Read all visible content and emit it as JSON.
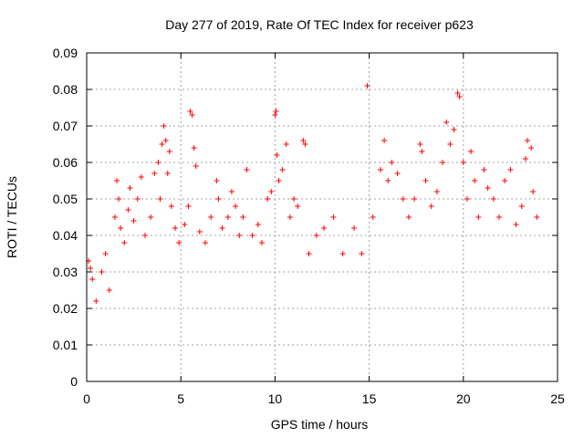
{
  "chart_data": {
    "type": "scatter",
    "title": "Day 277 of 2019, Rate Of TEC Index for receiver p623",
    "xlabel": "GPS time / hours",
    "ylabel": "ROTI / TECUs",
    "xlim": [
      0,
      25
    ],
    "ylim": [
      0,
      0.09
    ],
    "xticks": [
      0,
      5,
      10,
      15,
      20,
      25
    ],
    "xtick_labels": [
      "0",
      "5",
      "10",
      "15",
      "20",
      "25"
    ],
    "yticks": [
      0,
      0.01,
      0.02,
      0.03,
      0.04,
      0.05,
      0.06,
      0.07,
      0.08,
      0.09
    ],
    "ytick_labels": [
      "0",
      "0.01",
      "0.02",
      "0.03",
      "0.04",
      "0.05",
      "0.06",
      "0.07",
      "0.08",
      "0.09"
    ],
    "grid": true,
    "marker": "+",
    "color": "#ff0000",
    "series": [
      {
        "points": [
          [
            0.1,
            0.033
          ],
          [
            0.2,
            0.031
          ],
          [
            0.3,
            0.028
          ],
          [
            0.5,
            0.022
          ],
          [
            0.8,
            0.03
          ],
          [
            1.0,
            0.035
          ],
          [
            1.2,
            0.025
          ],
          [
            1.5,
            0.045
          ],
          [
            1.6,
            0.055
          ],
          [
            1.7,
            0.05
          ],
          [
            1.8,
            0.042
          ],
          [
            2.0,
            0.038
          ],
          [
            2.2,
            0.047
          ],
          [
            2.3,
            0.053
          ],
          [
            2.5,
            0.044
          ],
          [
            2.7,
            0.05
          ],
          [
            2.9,
            0.056
          ],
          [
            3.1,
            0.04
          ],
          [
            3.4,
            0.045
          ],
          [
            3.6,
            0.057
          ],
          [
            3.8,
            0.06
          ],
          [
            3.9,
            0.05
          ],
          [
            4.0,
            0.065
          ],
          [
            4.1,
            0.07
          ],
          [
            4.2,
            0.066
          ],
          [
            4.3,
            0.057
          ],
          [
            4.4,
            0.063
          ],
          [
            4.5,
            0.048
          ],
          [
            4.7,
            0.042
          ],
          [
            4.9,
            0.038
          ],
          [
            5.2,
            0.043
          ],
          [
            5.4,
            0.048
          ],
          [
            5.5,
            0.074
          ],
          [
            5.6,
            0.073
          ],
          [
            5.7,
            0.064
          ],
          [
            5.8,
            0.059
          ],
          [
            6.0,
            0.041
          ],
          [
            6.3,
            0.038
          ],
          [
            6.6,
            0.045
          ],
          [
            6.9,
            0.055
          ],
          [
            7.0,
            0.05
          ],
          [
            7.2,
            0.042
          ],
          [
            7.5,
            0.045
          ],
          [
            7.7,
            0.052
          ],
          [
            7.9,
            0.048
          ],
          [
            8.1,
            0.04
          ],
          [
            8.3,
            0.045
          ],
          [
            8.5,
            0.058
          ],
          [
            8.8,
            0.04
          ],
          [
            9.1,
            0.043
          ],
          [
            9.3,
            0.038
          ],
          [
            9.6,
            0.05
          ],
          [
            9.8,
            0.052
          ],
          [
            10.0,
            0.073
          ],
          [
            10.05,
            0.074
          ],
          [
            10.1,
            0.062
          ],
          [
            10.2,
            0.055
          ],
          [
            10.4,
            0.058
          ],
          [
            10.6,
            0.065
          ],
          [
            10.8,
            0.045
          ],
          [
            11.0,
            0.05
          ],
          [
            11.2,
            0.048
          ],
          [
            11.5,
            0.066
          ],
          [
            11.6,
            0.065
          ],
          [
            11.8,
            0.035
          ],
          [
            12.2,
            0.04
          ],
          [
            12.6,
            0.042
          ],
          [
            13.1,
            0.045
          ],
          [
            13.6,
            0.035
          ],
          [
            14.2,
            0.042
          ],
          [
            14.6,
            0.035
          ],
          [
            14.9,
            0.081
          ],
          [
            15.2,
            0.045
          ],
          [
            15.6,
            0.058
          ],
          [
            15.8,
            0.066
          ],
          [
            16.0,
            0.055
          ],
          [
            16.2,
            0.06
          ],
          [
            16.5,
            0.057
          ],
          [
            16.8,
            0.05
          ],
          [
            17.1,
            0.045
          ],
          [
            17.4,
            0.05
          ],
          [
            17.7,
            0.065
          ],
          [
            17.8,
            0.063
          ],
          [
            18.0,
            0.055
          ],
          [
            18.3,
            0.048
          ],
          [
            18.6,
            0.052
          ],
          [
            18.9,
            0.06
          ],
          [
            19.1,
            0.071
          ],
          [
            19.3,
            0.065
          ],
          [
            19.5,
            0.069
          ],
          [
            19.7,
            0.079
          ],
          [
            19.8,
            0.078
          ],
          [
            20.0,
            0.06
          ],
          [
            20.2,
            0.05
          ],
          [
            20.4,
            0.063
          ],
          [
            20.6,
            0.055
          ],
          [
            20.8,
            0.045
          ],
          [
            21.1,
            0.058
          ],
          [
            21.3,
            0.053
          ],
          [
            21.6,
            0.05
          ],
          [
            21.9,
            0.045
          ],
          [
            22.2,
            0.055
          ],
          [
            22.5,
            0.058
          ],
          [
            22.8,
            0.043
          ],
          [
            23.1,
            0.048
          ],
          [
            23.3,
            0.061
          ],
          [
            23.4,
            0.066
          ],
          [
            23.6,
            0.064
          ],
          [
            23.7,
            0.052
          ],
          [
            23.9,
            0.045
          ]
        ]
      }
    ]
  }
}
